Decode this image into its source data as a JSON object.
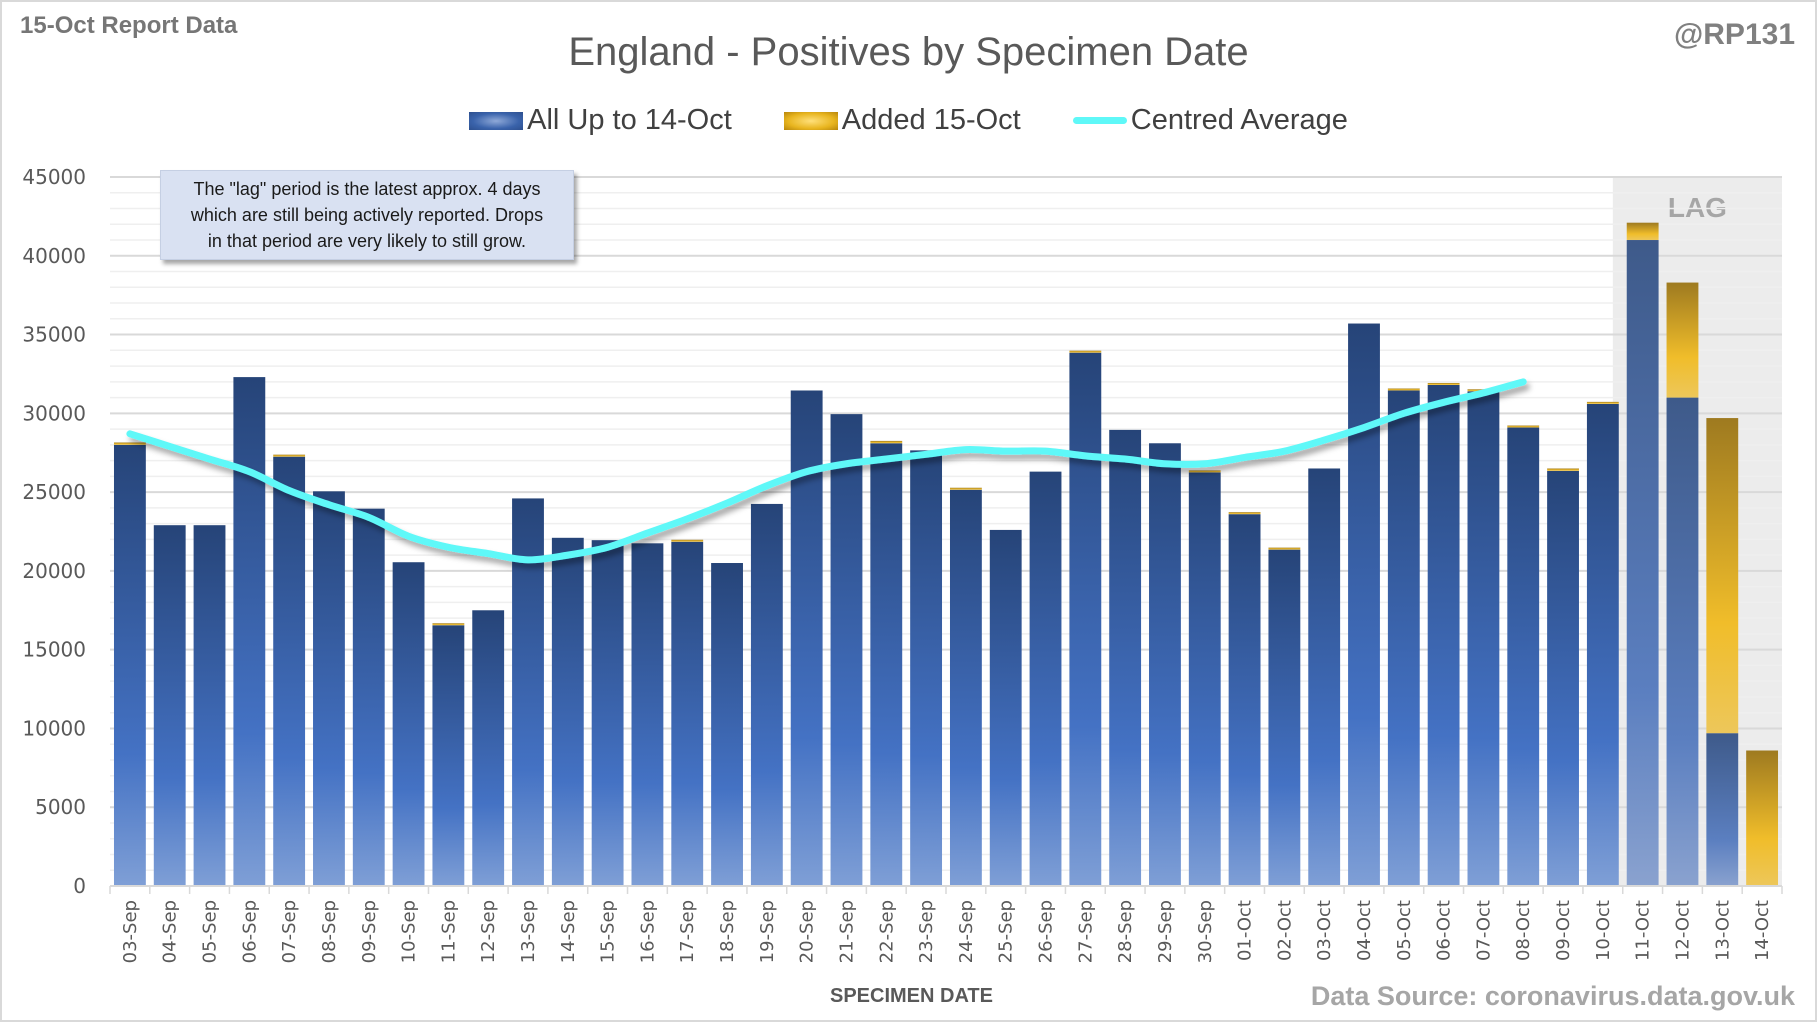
{
  "header": {
    "report_label": "15-Oct Report Data",
    "handle": "@RP131",
    "source": "Data Source: coronavirus.data.gov.uk"
  },
  "annotation": {
    "line1": "The \"lag\" period is the latest approx. 4 days",
    "line2": "which are still being actively reported.  Drops",
    "line3": "in that period are very likely to still grow."
  },
  "colors": {
    "blue_series": "#3a63ab",
    "gold_series": "#e8b51f",
    "average_line": "#5ff8f8",
    "lag_shade": "#ececec"
  },
  "chart_data": {
    "type": "bar",
    "stacked": true,
    "title": "England - Positives by Specimen Date",
    "xlabel": "SPECIMEN DATE",
    "ylabel": "",
    "ylim": [
      0,
      45000
    ],
    "yticks": [
      0,
      5000,
      10000,
      15000,
      20000,
      25000,
      30000,
      35000,
      40000,
      45000
    ],
    "grid": true,
    "legend_position": "top-center",
    "lag_label": "LAG",
    "lag_categories": [
      "11-Oct",
      "12-Oct",
      "13-Oct",
      "14-Oct"
    ],
    "categories": [
      "03-Sep",
      "04-Sep",
      "05-Sep",
      "06-Sep",
      "07-Sep",
      "08-Sep",
      "09-Sep",
      "10-Sep",
      "11-Sep",
      "12-Sep",
      "13-Sep",
      "14-Sep",
      "15-Sep",
      "16-Sep",
      "17-Sep",
      "18-Sep",
      "19-Sep",
      "20-Sep",
      "21-Sep",
      "22-Sep",
      "23-Sep",
      "24-Sep",
      "25-Sep",
      "26-Sep",
      "27-Sep",
      "28-Sep",
      "29-Sep",
      "30-Sep",
      "01-Oct",
      "02-Oct",
      "03-Oct",
      "04-Oct",
      "05-Oct",
      "06-Oct",
      "07-Oct",
      "08-Oct",
      "09-Oct",
      "10-Oct",
      "11-Oct",
      "12-Oct",
      "13-Oct",
      "14-Oct"
    ],
    "series": [
      {
        "name": "All Up to 14-Oct",
        "kind": "bar",
        "values": [
          28000,
          22900,
          22900,
          32300,
          27250,
          25050,
          23950,
          20550,
          16550,
          17500,
          24600,
          22100,
          21950,
          21750,
          21850,
          20500,
          24250,
          31450,
          29950,
          28100,
          27650,
          25150,
          22600,
          26300,
          33850,
          28950,
          28100,
          26250,
          23600,
          21350,
          26500,
          35700,
          31450,
          31800,
          31400,
          29100,
          26350,
          30600,
          41000,
          31000,
          9700,
          0
        ]
      },
      {
        "name": "Added 15-Oct",
        "kind": "bar",
        "values": [
          150,
          0,
          0,
          0,
          100,
          0,
          0,
          0,
          100,
          0,
          0,
          0,
          0,
          0,
          100,
          0,
          0,
          0,
          0,
          150,
          0,
          100,
          0,
          0,
          100,
          0,
          0,
          100,
          100,
          100,
          0,
          0,
          100,
          100,
          100,
          100,
          150,
          100,
          1100,
          7300,
          20000,
          8600
        ]
      },
      {
        "name": "Centred Average",
        "kind": "line",
        "values": [
          28700,
          27900,
          27100,
          26300,
          25100,
          24200,
          23400,
          22200,
          21500,
          21100,
          20700,
          21000,
          21500,
          22400,
          23300,
          24300,
          25400,
          26300,
          26800,
          27100,
          27400,
          27700,
          27600,
          27600,
          27300,
          27100,
          26800,
          26800,
          27200,
          27600,
          28300,
          29100,
          30000,
          30700,
          31300,
          32000,
          null,
          null,
          null,
          null,
          null,
          null
        ]
      }
    ]
  }
}
